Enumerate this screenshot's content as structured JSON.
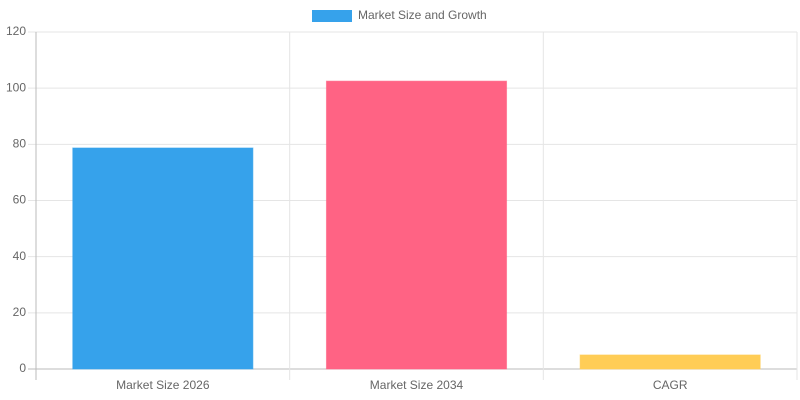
{
  "chart_data": {
    "type": "bar",
    "categories": [
      "Market Size 2026",
      "Market Size 2034",
      "CAGR"
    ],
    "series": [
      {
        "name": "Market Size and Growth",
        "colors": [
          "#36a2eb",
          "#ff6384",
          "#ffcd56"
        ],
        "values": [
          78.7,
          102.5,
          5
        ]
      }
    ],
    "ylim": [
      0,
      120
    ],
    "yticks": [
      0,
      20,
      40,
      60,
      80,
      100,
      120
    ],
    "grid": true
  }
}
